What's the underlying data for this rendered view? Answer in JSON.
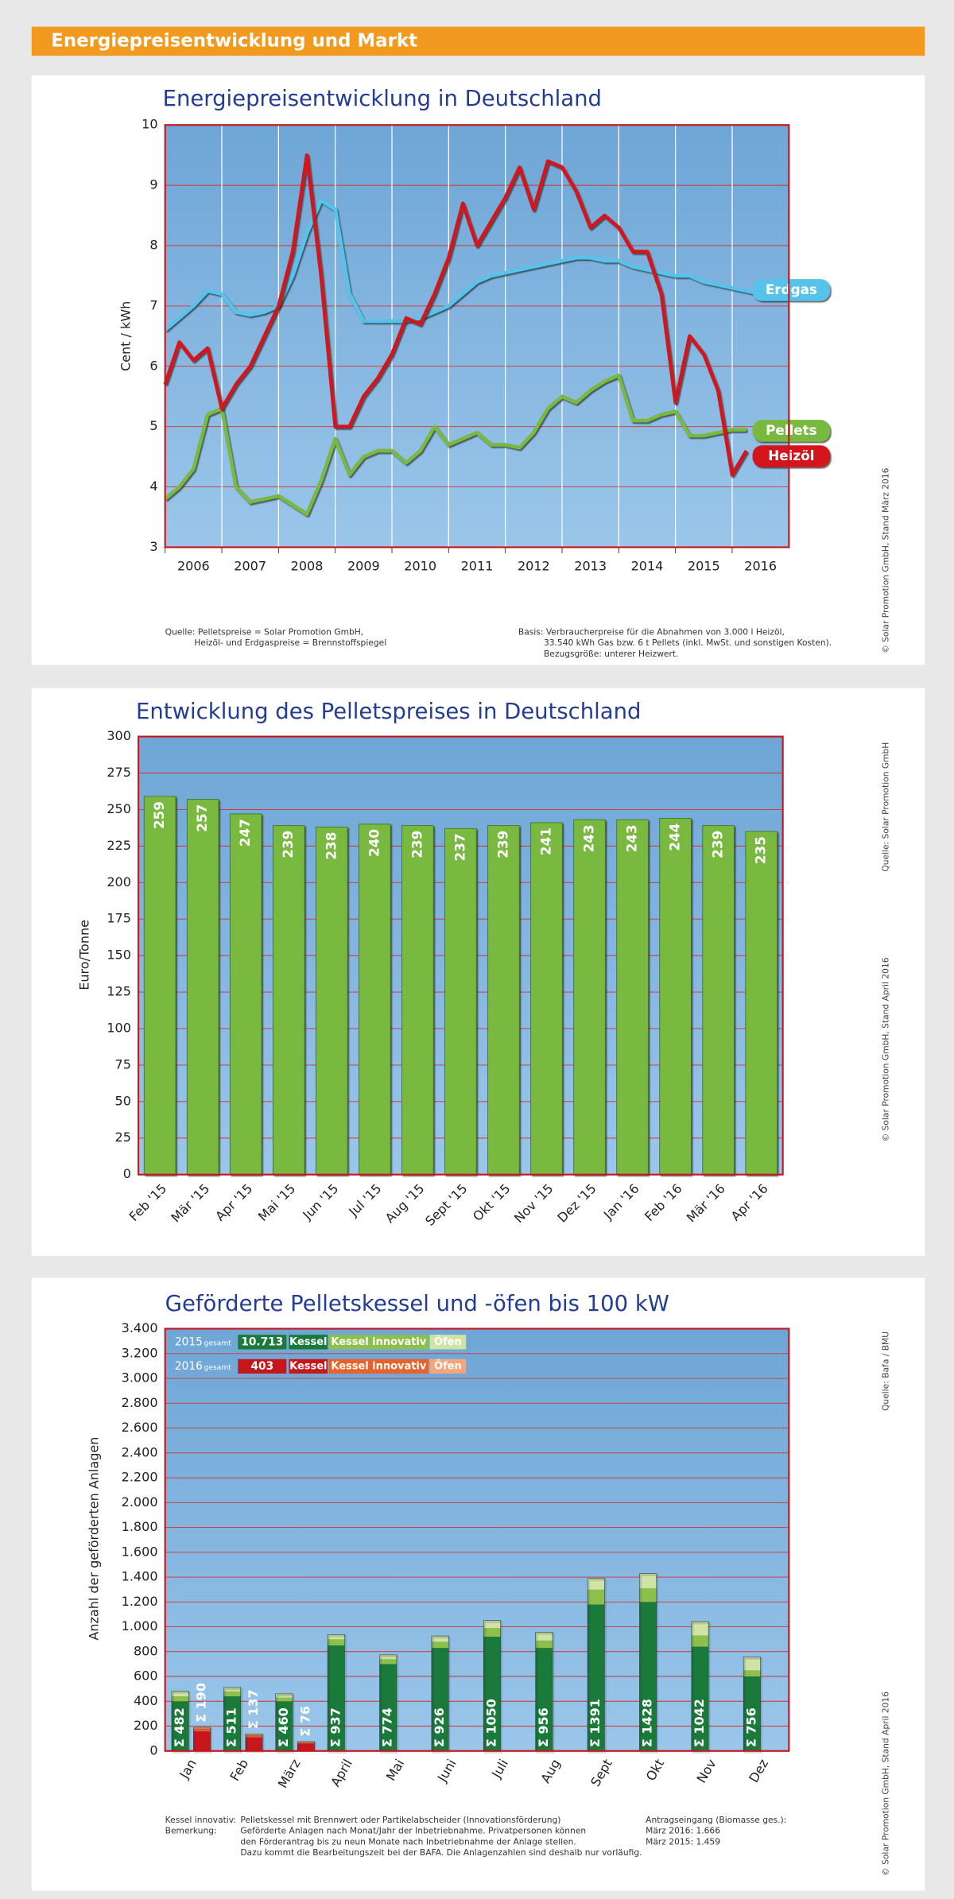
{
  "header": {
    "title": "Energiepreisentwicklung und Markt"
  },
  "chart_data": [
    {
      "type": "line",
      "title": "Energiepreisentwicklung in Deutschland",
      "ylabel": "Cent / kWh",
      "xlim": [
        2006,
        2017
      ],
      "xticks": [
        2006,
        2007,
        2008,
        2009,
        2010,
        2011,
        2012,
        2013,
        2014,
        2015,
        2016
      ],
      "ylim": [
        3,
        10
      ],
      "yticks": [
        3,
        4,
        5,
        6,
        7,
        8,
        9,
        10
      ],
      "grid": true,
      "series": [
        {
          "name": "Erdgas",
          "color": "#56c4ea",
          "x": [
            2006,
            2006.25,
            2006.5,
            2006.75,
            2007,
            2007.25,
            2007.5,
            2007.75,
            2008,
            2008.25,
            2008.5,
            2008.75,
            2009,
            2009.25,
            2009.5,
            2009.75,
            2010,
            2010.25,
            2010.5,
            2010.75,
            2011,
            2011.25,
            2011.5,
            2011.75,
            2012,
            2012.25,
            2012.5,
            2012.75,
            2013,
            2013.25,
            2013.5,
            2013.75,
            2014,
            2014.25,
            2014.5,
            2014.75,
            2015,
            2015.25,
            2015.5,
            2015.75,
            2016,
            2016.25,
            2016.5
          ],
          "values": [
            6.6,
            6.8,
            7.0,
            7.25,
            7.2,
            6.9,
            6.85,
            6.9,
            7.0,
            7.5,
            8.2,
            8.75,
            8.6,
            7.2,
            6.75,
            6.75,
            6.75,
            6.75,
            6.8,
            6.9,
            7.0,
            7.2,
            7.4,
            7.5,
            7.55,
            7.6,
            7.65,
            7.7,
            7.75,
            7.8,
            7.8,
            7.75,
            7.75,
            7.65,
            7.6,
            7.55,
            7.5,
            7.5,
            7.4,
            7.35,
            7.3,
            7.25,
            7.2
          ]
        },
        {
          "name": "Pellets",
          "color": "#7ab940",
          "x": [
            2006,
            2006.25,
            2006.5,
            2006.75,
            2007,
            2007.25,
            2007.5,
            2007.75,
            2008,
            2008.25,
            2008.5,
            2008.75,
            2009,
            2009.25,
            2009.5,
            2009.75,
            2010,
            2010.25,
            2010.5,
            2010.75,
            2011,
            2011.25,
            2011.5,
            2011.75,
            2012,
            2012.25,
            2012.5,
            2012.75,
            2013,
            2013.25,
            2013.5,
            2013.75,
            2014,
            2014.25,
            2014.5,
            2014.75,
            2015,
            2015.25,
            2015.5,
            2015.75,
            2016,
            2016.25
          ],
          "values": [
            3.8,
            4.0,
            4.3,
            5.2,
            5.3,
            4.0,
            3.75,
            3.8,
            3.85,
            3.7,
            3.55,
            4.1,
            4.8,
            4.2,
            4.5,
            4.6,
            4.6,
            4.4,
            4.6,
            5.0,
            4.7,
            4.8,
            4.9,
            4.7,
            4.7,
            4.65,
            4.9,
            5.3,
            5.5,
            5.4,
            5.6,
            5.75,
            5.85,
            5.1,
            5.1,
            5.2,
            5.25,
            4.85,
            4.85,
            4.9,
            4.95,
            4.95
          ]
        },
        {
          "name": "Heizöl",
          "color": "#d4151b",
          "x": [
            2006,
            2006.25,
            2006.5,
            2006.75,
            2007,
            2007.25,
            2007.5,
            2007.75,
            2008,
            2008.25,
            2008.5,
            2008.75,
            2009,
            2009.25,
            2009.5,
            2009.75,
            2010,
            2010.25,
            2010.5,
            2010.75,
            2011,
            2011.25,
            2011.5,
            2011.75,
            2012,
            2012.25,
            2012.5,
            2012.75,
            2013,
            2013.25,
            2013.5,
            2013.75,
            2014,
            2014.25,
            2014.5,
            2014.75,
            2015,
            2015.25,
            2015.5,
            2015.75,
            2016,
            2016.25
          ],
          "values": [
            5.7,
            6.4,
            6.1,
            6.3,
            5.3,
            5.7,
            6.0,
            6.5,
            7.0,
            7.9,
            9.5,
            7.5,
            5.0,
            5.0,
            5.5,
            5.8,
            6.2,
            6.8,
            6.7,
            7.2,
            7.8,
            8.7,
            8.0,
            8.4,
            8.8,
            9.3,
            8.6,
            9.4,
            9.3,
            8.9,
            8.3,
            8.5,
            8.3,
            7.9,
            7.9,
            7.2,
            5.4,
            6.5,
            6.2,
            5.6,
            4.2,
            4.6
          ]
        }
      ],
      "notes": [
        "Quelle: Pelletspreise = Solar Promotion GmbH,",
        "Heizöl- und Erdgaspreise = Brennstoffspiegel",
        "Basis: Verbraucherpreise für die Abnahmen von 3.000 l Heizöl,",
        "33.540 kWh Gas bzw. 6 t Pellets (inkl. MwSt. und sonstigen Kosten).",
        "Bezugsgröße: unterer Heizwert."
      ],
      "copyright": "© Solar Promotion GmbH, Stand März 2016"
    },
    {
      "type": "bar",
      "title": "Entwicklung des Pelletspreises in Deutschland",
      "ylabel": "Euro/Tonne",
      "color": "#7ab940",
      "categories": [
        "Feb '15",
        "Mär '15",
        "Apr '15",
        "Mai '15",
        "Jun '15",
        "Jul '15",
        "Aug '15",
        "Sept '15",
        "Okt '15",
        "Nov '15",
        "Dez '15",
        "Jan '16",
        "Feb '16",
        "Mär '16",
        "Apr '16"
      ],
      "values": [
        259,
        257,
        247,
        239,
        238,
        240,
        239,
        237,
        239,
        241,
        243,
        243,
        244,
        239,
        235
      ],
      "ylim": [
        0,
        300
      ],
      "yticks": [
        0,
        25,
        50,
        75,
        100,
        125,
        150,
        175,
        200,
        225,
        250,
        275,
        300
      ],
      "grid": true,
      "source": "Quelle: Solar Promotion GmbH",
      "copyright": "© Solar Promotion GmbH, Stand April 2016"
    },
    {
      "type": "stacked_bar",
      "title": "Geförderte Pelletskessel und -öfen bis 100 kW",
      "ylabel": "Anzahl der geförderten Anlagen",
      "categories": [
        "Jan",
        "Feb",
        "März",
        "April",
        "Mai",
        "Juni",
        "Juli",
        "Aug",
        "Sept",
        "Okt",
        "Nov",
        "Dez"
      ],
      "ylim": [
        0,
        3400
      ],
      "yticks": [
        0,
        200,
        400,
        600,
        800,
        {
          "value": 1000,
          "label": "1.000"
        },
        {
          "value": 1200,
          "label": "1.200"
        },
        {
          "value": 1400,
          "label": "1.400"
        },
        {
          "value": 1600,
          "label": "1.600"
        },
        {
          "value": 1800,
          "label": "1.800"
        },
        {
          "value": 2000,
          "label": "2.000"
        },
        {
          "value": 2200,
          "label": "2.200"
        },
        {
          "value": 2400,
          "label": "2.400"
        },
        {
          "value": 2600,
          "label": "2.600"
        },
        {
          "value": 2800,
          "label": "2.800"
        },
        {
          "value": 3000,
          "label": "3.000"
        },
        {
          "value": 3200,
          "label": "3.200"
        },
        {
          "value": 3400,
          "label": "3.400"
        }
      ],
      "grid": true,
      "groups": [
        {
          "year": "2015",
          "label": "gesamt",
          "total": "10.713",
          "series": [
            {
              "name": "Kessel",
              "color": "#1a7a3a",
              "values": [
                400,
                440,
                400,
                850,
                700,
                830,
                920,
                830,
                1180,
                1200,
                840,
                600
              ]
            },
            {
              "name": "Kessel innovativ",
              "color": "#8cc04a",
              "values": [
                40,
                40,
                30,
                50,
                40,
                50,
                70,
                60,
                120,
                110,
                90,
                50
              ]
            },
            {
              "name": "Öfen",
              "color": "#cfe3a4",
              "values": [
                42,
                31,
                30,
                37,
                34,
                46,
                60,
                66,
                91,
                118,
                112,
                106
              ]
            }
          ],
          "totals": [
            482,
            511,
            460,
            937,
            774,
            926,
            1050,
            956,
            1391,
            1428,
            1042,
            756
          ],
          "total_labels": [
            "Σ 482",
            "Σ 511",
            "Σ 460",
            "Σ 937",
            "Σ 774",
            "Σ 926",
            "Σ 1050",
            "Σ 956",
            "Σ 1391",
            "Σ 1428",
            "Σ 1042",
            "Σ 756"
          ]
        },
        {
          "year": "2016",
          "label": "gesamt",
          "total": "403",
          "series": [
            {
              "name": "Kessel",
              "color": "#c8161d",
              "values": [
                160,
                110,
                60,
                null,
                null,
                null,
                null,
                null,
                null,
                null,
                null,
                null
              ]
            },
            {
              "name": "Kessel innovativ",
              "color": "#e8632a",
              "values": [
                20,
                17,
                10,
                null,
                null,
                null,
                null,
                null,
                null,
                null,
                null,
                null
              ]
            },
            {
              "name": "Öfen",
              "color": "#f4a57a",
              "values": [
                10,
                10,
                6,
                null,
                null,
                null,
                null,
                null,
                null,
                null,
                null,
                null
              ]
            }
          ],
          "totals": [
            190,
            137,
            76,
            null,
            null,
            null,
            null,
            null,
            null,
            null,
            null,
            null
          ],
          "total_labels": [
            "Σ 190",
            "Σ 137",
            "Σ 76",
            null,
            null,
            null,
            null,
            null,
            null,
            null,
            null,
            null
          ]
        }
      ],
      "notes_left": [
        "Kessel innovativ:",
        "Bemerkung:"
      ],
      "notes": [
        "Pelletskessel mit Brennwert oder Partikelabscheider (Innovationsförderung)",
        "Geförderte Anlagen nach Monat/Jahr der Inbetriebnahme. Privatpersonen können",
        "den Förderantrag bis zu neun Monate nach Inbetriebnahme der Anlage stellen.",
        "Dazu kommt die Bearbeitungszeit bei der BAFA. Die Anlagenzahlen sind deshalb nur vorläufig."
      ],
      "notes_right": [
        "Antragseingang (Biomasse ges.):",
        "März 2016: 1.666",
        "März 2015: 1.459"
      ],
      "source": "Quelle: Bafa / BMU",
      "copyright": "© Solar Promotion GmbH, Stand April 2016"
    }
  ]
}
